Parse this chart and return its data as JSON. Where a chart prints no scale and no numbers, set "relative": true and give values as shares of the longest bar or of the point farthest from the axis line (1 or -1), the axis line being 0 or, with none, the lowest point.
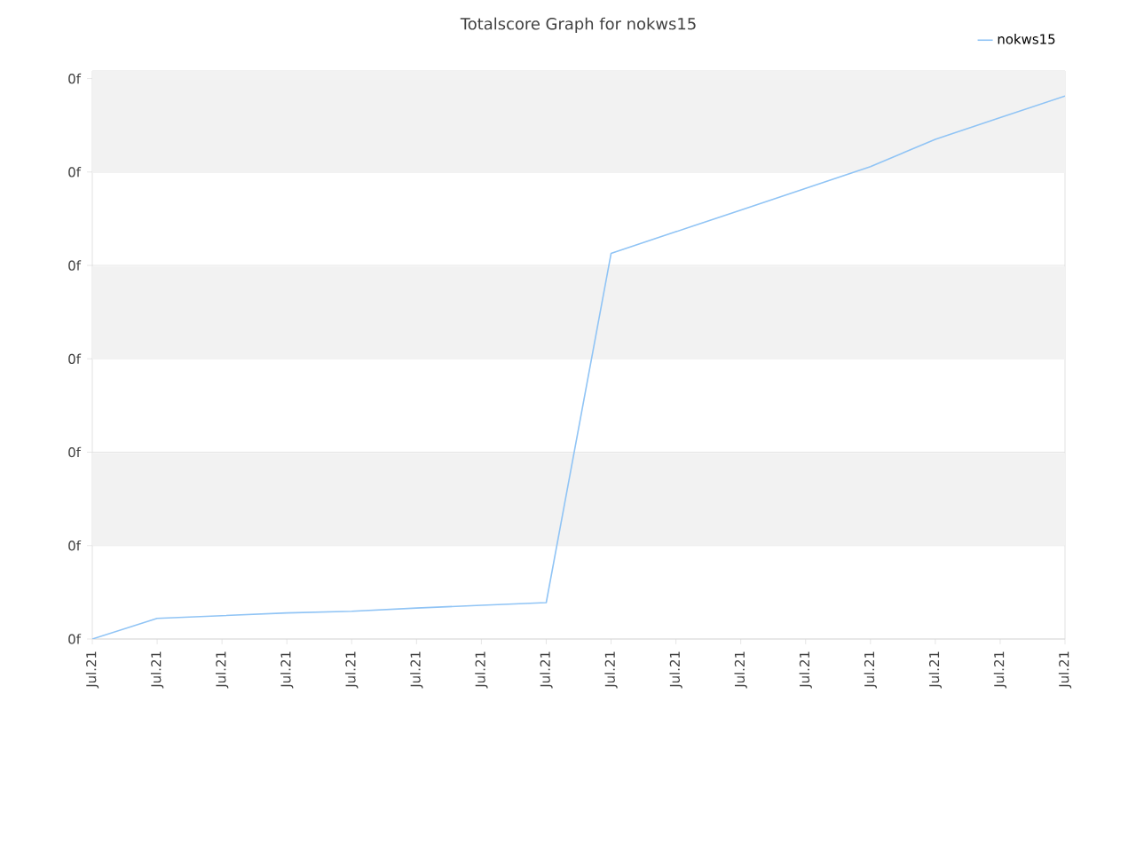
{
  "chart_data": {
    "type": "line",
    "title": "Totalscore Graph for nokws15",
    "relative": true,
    "categories": [
      "Jul.21",
      "Jul.21",
      "Jul.21",
      "Jul.21",
      "Jul.21",
      "Jul.21",
      "Jul.21",
      "Jul.21",
      "Jul.21",
      "Jul.21",
      "Jul.21",
      "Jul.21",
      "Jul.21",
      "Jul.21",
      "Jul.21",
      "Jul.21"
    ],
    "series": [
      {
        "name": "nokws15",
        "color": "#90c4f5",
        "values": [
          0,
          0.038,
          0.043,
          0.048,
          0.051,
          0.057,
          0.062,
          0.067,
          0.71,
          0.75,
          0.79,
          0.83,
          0.87,
          0.92,
          0.96,
          1
        ]
      }
    ],
    "annotations": [
      "0f",
      "0f",
      "0f",
      "0f",
      "0f",
      "0f",
      "0f"
    ],
    "bands": [
      {
        "axis": "y",
        "from": 0.172,
        "to": 0.343,
        "color": "#f2f2f2"
      },
      {
        "axis": "y",
        "from": 0.515,
        "to": 0.686,
        "color": "#f2f2f2"
      },
      {
        "axis": "y",
        "from": 0.858,
        "to": 1.046,
        "color": "#f2f2f2"
      }
    ],
    "grid": "y",
    "legend": "top right"
  }
}
